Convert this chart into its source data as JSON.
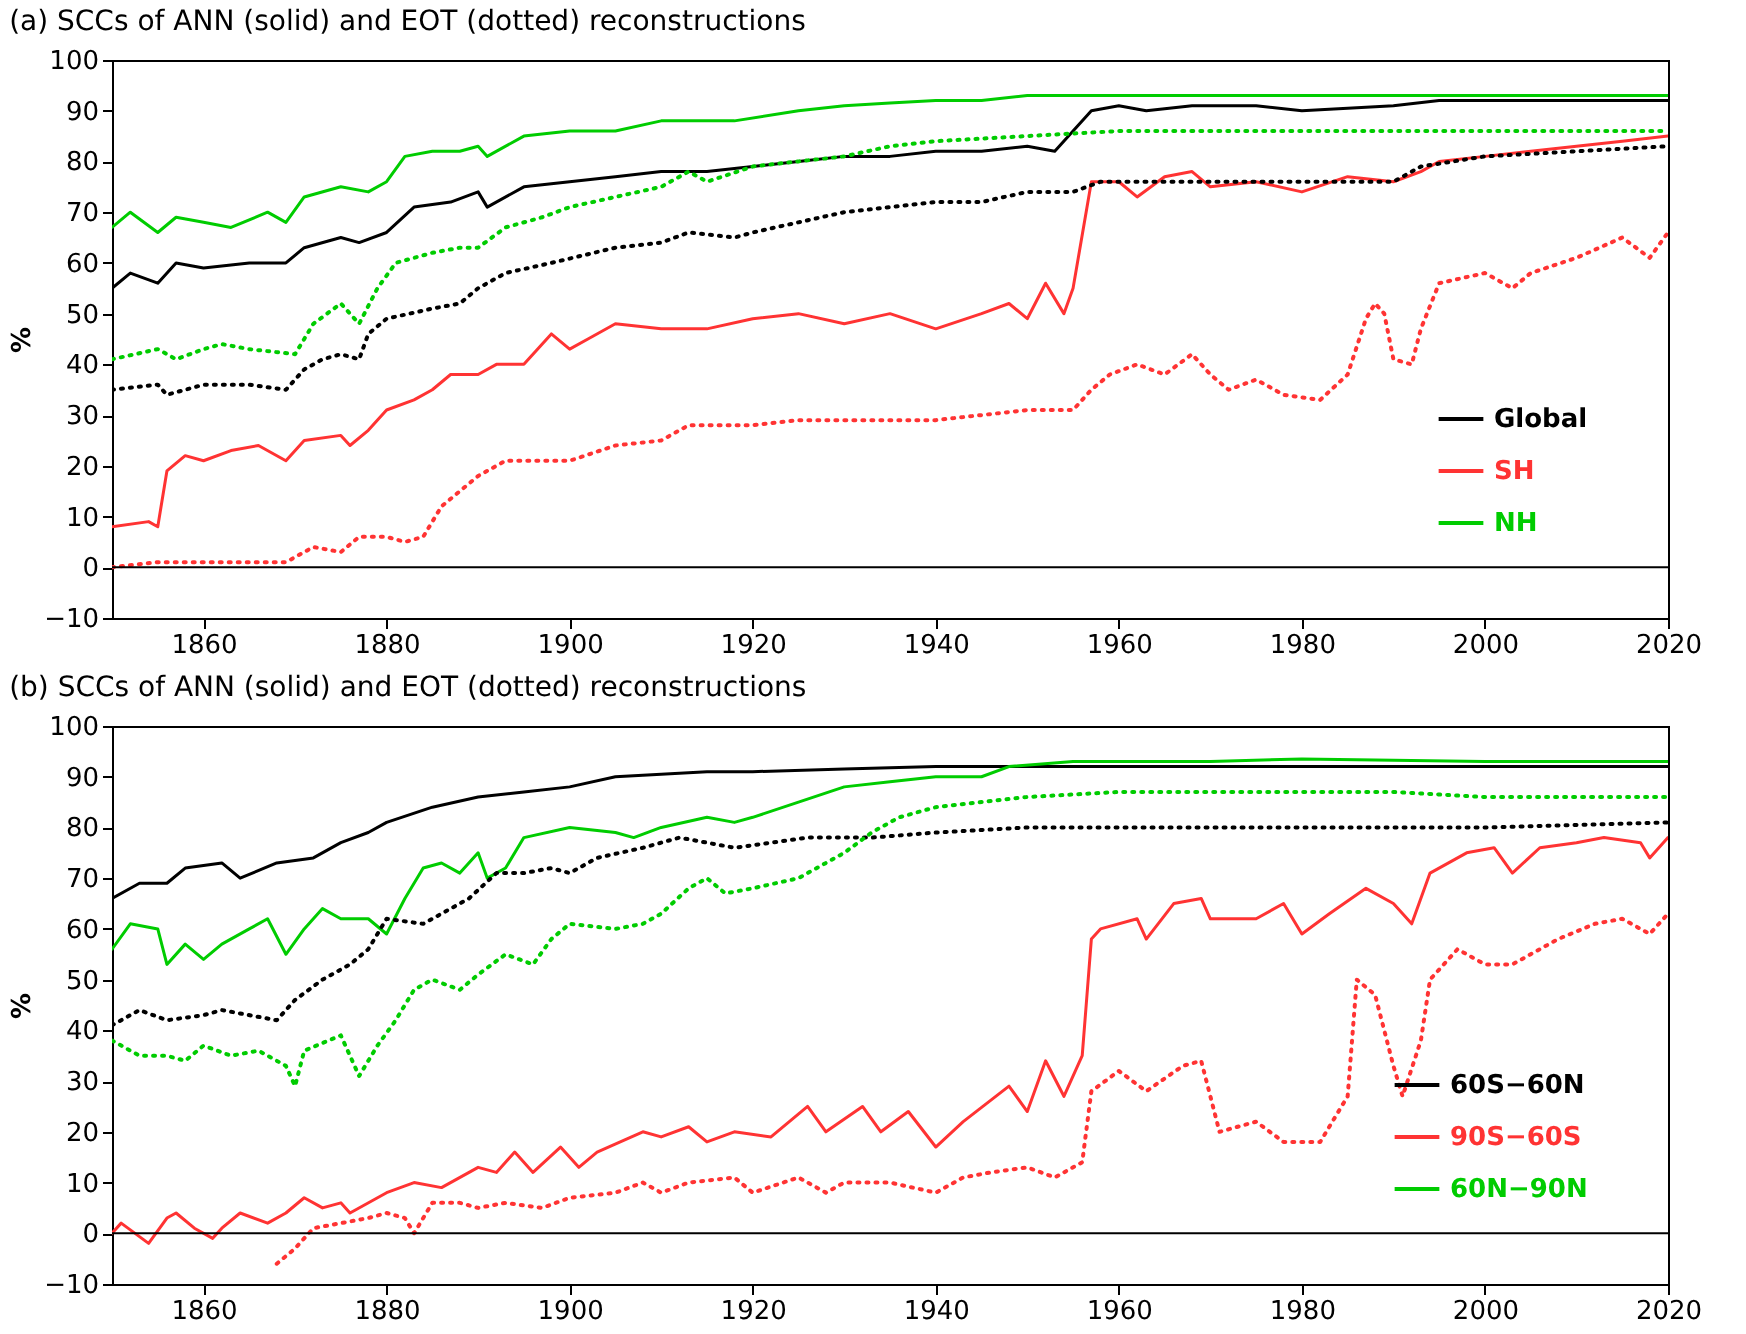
{
  "chart_data": [
    {
      "type": "line",
      "title": "(a) SCCs of ANN (solid) and EOT (dotted) reconstructions",
      "ylabel": "%",
      "xlim": [
        1850,
        2020
      ],
      "ylim": [
        -10,
        100
      ],
      "xticks": [
        1860,
        1880,
        1900,
        1920,
        1940,
        1960,
        1980,
        2000,
        2020
      ],
      "yticks": [
        -10,
        0,
        10,
        20,
        30,
        40,
        50,
        60,
        70,
        80,
        90,
        100
      ],
      "legend": "bottom right",
      "ref_lines": [
        {
          "axis": "y",
          "value": 0,
          "color": "#000000"
        }
      ],
      "series": [
        {
          "name": "Global",
          "color": "#000000",
          "line_style": "solid",
          "x": [
            1850,
            1852,
            1855,
            1857,
            1860,
            1865,
            1869,
            1871,
            1875,
            1877,
            1880,
            1883,
            1887,
            1890,
            1891,
            1895,
            1900,
            1905,
            1910,
            1915,
            1920,
            1925,
            1930,
            1935,
            1940,
            1945,
            1950,
            1953,
            1955,
            1957,
            1960,
            1963,
            1968,
            1975,
            1980,
            1990,
            1995,
            2000,
            2005,
            2010,
            2020
          ],
          "values": [
            55,
            58,
            56,
            60,
            59,
            60,
            60,
            63,
            65,
            64,
            66,
            71,
            72,
            74,
            71,
            75,
            76,
            77,
            78,
            78,
            79,
            80,
            81,
            81,
            82,
            82,
            83,
            82,
            86,
            90,
            91,
            90,
            91,
            91,
            90,
            91,
            92,
            92,
            92,
            92,
            92
          ]
        },
        {
          "name": "SH",
          "color": "#ff3333",
          "line_style": "solid",
          "x": [
            1850,
            1854,
            1855,
            1856,
            1858,
            1860,
            1863,
            1866,
            1869,
            1871,
            1875,
            1876,
            1878,
            1880,
            1883,
            1885,
            1887,
            1890,
            1892,
            1895,
            1898,
            1900,
            1902,
            1905,
            1910,
            1915,
            1920,
            1925,
            1930,
            1935,
            1940,
            1945,
            1948,
            1950,
            1952,
            1954,
            1955,
            1957,
            1960,
            1962,
            1965,
            1968,
            1970,
            1975,
            1980,
            1985,
            1990,
            1993,
            1995,
            2000,
            2005,
            2010,
            2015,
            2020
          ],
          "values": [
            8,
            9,
            8,
            19,
            22,
            21,
            23,
            24,
            21,
            25,
            26,
            24,
            27,
            31,
            33,
            35,
            38,
            38,
            40,
            40,
            46,
            43,
            45,
            48,
            47,
            47,
            49,
            50,
            48,
            50,
            47,
            50,
            52,
            49,
            56,
            50,
            55,
            76,
            76,
            73,
            77,
            78,
            75,
            76,
            74,
            77,
            76,
            78,
            80,
            81,
            82,
            83,
            84,
            85
          ]
        },
        {
          "name": "NH",
          "color": "#00cc00",
          "line_style": "solid",
          "x": [
            1850,
            1852,
            1855,
            1857,
            1860,
            1863,
            1867,
            1869,
            1871,
            1875,
            1878,
            1880,
            1882,
            1885,
            1888,
            1890,
            1891,
            1895,
            1900,
            1905,
            1910,
            1918,
            1925,
            1930,
            1935,
            1940,
            1945,
            1950,
            1960,
            1980,
            2000,
            2020
          ],
          "values": [
            67,
            70,
            66,
            69,
            68,
            67,
            70,
            68,
            73,
            75,
            74,
            76,
            81,
            82,
            82,
            83,
            81,
            85,
            86,
            86,
            88,
            88,
            90,
            91,
            91.5,
            92,
            92,
            93,
            93,
            93,
            93,
            93
          ]
        },
        {
          "color": "#000000",
          "line_style": "dotted",
          "x": [
            1850,
            1855,
            1856,
            1860,
            1865,
            1869,
            1871,
            1873,
            1875,
            1877,
            1878,
            1880,
            1885,
            1888,
            1890,
            1893,
            1898,
            1905,
            1910,
            1913,
            1918,
            1920,
            1925,
            1930,
            1935,
            1940,
            1945,
            1950,
            1955,
            1958,
            1965,
            1970,
            1980,
            1990,
            1993,
            2000,
            2010,
            2020
          ],
          "values": [
            35,
            36,
            34,
            36,
            36,
            35,
            39,
            41,
            42,
            41,
            46,
            49,
            51,
            52,
            55,
            58,
            60,
            63,
            64,
            66,
            65,
            66,
            68,
            70,
            71,
            72,
            72,
            74,
            74,
            76,
            76,
            76,
            76,
            76,
            79,
            81,
            82,
            83
          ]
        },
        {
          "color": "#ff3333",
          "line_style": "dotted",
          "x": [
            1850,
            1855,
            1860,
            1865,
            1869,
            1872,
            1875,
            1877,
            1880,
            1882,
            1884,
            1886,
            1888,
            1890,
            1893,
            1897,
            1900,
            1905,
            1910,
            1913,
            1920,
            1925,
            1930,
            1935,
            1940,
            1945,
            1950,
            1955,
            1957,
            1959,
            1962,
            1965,
            1968,
            1970,
            1972,
            1975,
            1978,
            1982,
            1985,
            1987,
            1988,
            1989,
            1990,
            1992,
            1993,
            1995,
            2000,
            2003,
            2005,
            2010,
            2015,
            2018,
            2020
          ],
          "values": [
            0,
            1,
            1,
            1,
            1,
            4,
            3,
            6,
            6,
            5,
            6,
            12,
            15,
            18,
            21,
            21,
            21,
            24,
            25,
            28,
            28,
            29,
            29,
            29,
            29,
            30,
            31,
            31,
            35,
            38,
            40,
            38,
            42,
            38,
            35,
            37,
            34,
            33,
            38,
            49,
            52,
            50,
            41,
            40,
            47,
            56,
            58,
            55,
            58,
            61,
            65,
            61,
            66
          ]
        },
        {
          "color": "#00cc00",
          "line_style": "dotted",
          "x": [
            1850,
            1855,
            1857,
            1860,
            1862,
            1865,
            1870,
            1872,
            1875,
            1877,
            1879,
            1881,
            1885,
            1888,
            1890,
            1893,
            1897,
            1900,
            1905,
            1910,
            1913,
            1915,
            1920,
            1925,
            1930,
            1935,
            1940,
            1950,
            1960,
            1970,
            1990,
            2000,
            2020
          ],
          "values": [
            41,
            43,
            41,
            43,
            44,
            43,
            42,
            48,
            52,
            48,
            55,
            60,
            62,
            63,
            63,
            67,
            69,
            71,
            73,
            75,
            78,
            76,
            79,
            80,
            81,
            83,
            84,
            85,
            86,
            86,
            86,
            86,
            86
          ]
        }
      ]
    },
    {
      "type": "line",
      "title": "(b) SCCs of ANN (solid) and EOT (dotted) reconstructions",
      "ylabel": "%",
      "xlim": [
        1850,
        2020
      ],
      "ylim": [
        -10,
        100
      ],
      "xticks": [
        1860,
        1880,
        1900,
        1920,
        1940,
        1960,
        1980,
        2000,
        2020
      ],
      "yticks": [
        -10,
        0,
        10,
        20,
        30,
        40,
        50,
        60,
        70,
        80,
        90,
        100
      ],
      "legend": "bottom right",
      "ref_lines": [
        {
          "axis": "y",
          "value": 0,
          "color": "#000000"
        }
      ],
      "series": [
        {
          "name": "60S−60N",
          "color": "#000000",
          "line_style": "solid",
          "x": [
            1850,
            1853,
            1856,
            1858,
            1862,
            1864,
            1868,
            1872,
            1875,
            1878,
            1880,
            1885,
            1890,
            1895,
            1900,
            1905,
            1910,
            1915,
            1920,
            1930,
            1940,
            1950,
            1960,
            2000,
            2010,
            2020
          ],
          "values": [
            66,
            69,
            69,
            72,
            73,
            70,
            73,
            74,
            77,
            79,
            81,
            84,
            86,
            87,
            88,
            90,
            90.5,
            91,
            91,
            91.5,
            92,
            92,
            92,
            92,
            92,
            92
          ]
        },
        {
          "name": "90S−60S",
          "color": "#ff3333",
          "line_style": "solid",
          "x": [
            1850,
            1851,
            1854,
            1856,
            1857,
            1859,
            1861,
            1862,
            1864,
            1867,
            1869,
            1871,
            1873,
            1875,
            1876,
            1880,
            1883,
            1886,
            1890,
            1892,
            1894,
            1896,
            1899,
            1901,
            1903,
            1908,
            1910,
            1913,
            1915,
            1918,
            1922,
            1926,
            1928,
            1932,
            1934,
            1937,
            1940,
            1943,
            1948,
            1950,
            1952,
            1954,
            1956,
            1957,
            1958,
            1962,
            1963,
            1966,
            1969,
            1970,
            1975,
            1978,
            1980,
            1983,
            1987,
            1990,
            1992,
            1994,
            1998,
            2001,
            2003,
            2006,
            2010,
            2013,
            2017,
            2018,
            2020
          ],
          "values": [
            0,
            2,
            -2,
            3,
            4,
            1,
            -1,
            1,
            4,
            2,
            4,
            7,
            5,
            6,
            4,
            8,
            10,
            9,
            13,
            12,
            16,
            12,
            17,
            13,
            16,
            20,
            19,
            21,
            18,
            20,
            19,
            25,
            20,
            25,
            20,
            24,
            17,
            22,
            29,
            24,
            34,
            27,
            35,
            58,
            60,
            62,
            58,
            65,
            66,
            62,
            62,
            65,
            59,
            63,
            68,
            65,
            61,
            71,
            75,
            76,
            71,
            76,
            77,
            78,
            77,
            74,
            78
          ]
        },
        {
          "name": "60N−90N",
          "color": "#00cc00",
          "line_style": "solid",
          "x": [
            1850,
            1852,
            1855,
            1856,
            1858,
            1860,
            1862,
            1865,
            1867,
            1869,
            1871,
            1873,
            1875,
            1878,
            1880,
            1882,
            1884,
            1886,
            1888,
            1890,
            1891,
            1893,
            1895,
            1900,
            1905,
            1907,
            1910,
            1915,
            1918,
            1920,
            1925,
            1930,
            1935,
            1940,
            1945,
            1948,
            1955,
            1970,
            1980,
            2000,
            2020
          ],
          "values": [
            56,
            61,
            60,
            53,
            57,
            54,
            57,
            60,
            62,
            55,
            60,
            64,
            62,
            62,
            59,
            66,
            72,
            73,
            71,
            75,
            70,
            72,
            78,
            80,
            79,
            78,
            80,
            82,
            81,
            82,
            85,
            88,
            89,
            90,
            90,
            92,
            93,
            93,
            93.5,
            93,
            93
          ]
        },
        {
          "color": "#000000",
          "line_style": "dotted",
          "x": [
            1850,
            1853,
            1856,
            1860,
            1862,
            1868,
            1870,
            1873,
            1876,
            1878,
            1880,
            1884,
            1886,
            1889,
            1892,
            1895,
            1898,
            1900,
            1903,
            1908,
            1912,
            1918,
            1922,
            1926,
            1933,
            1940,
            1950,
            1960,
            1980,
            2000,
            2020
          ],
          "values": [
            41,
            44,
            42,
            43,
            44,
            42,
            46,
            50,
            53,
            56,
            62,
            61,
            63,
            66,
            71,
            71,
            72,
            71,
            74,
            76,
            78,
            76,
            77,
            78,
            78,
            79,
            80,
            80,
            80,
            80,
            81
          ]
        },
        {
          "color": "#ff3333",
          "line_style": "dotted",
          "x": [
            1868,
            1870,
            1872,
            1875,
            1878,
            1880,
            1882,
            1883,
            1885,
            1888,
            1890,
            1893,
            1897,
            1900,
            1905,
            1908,
            1910,
            1913,
            1918,
            1920,
            1925,
            1928,
            1930,
            1935,
            1940,
            1943,
            1946,
            1950,
            1953,
            1956,
            1957,
            1960,
            1963,
            1967,
            1969,
            1971,
            1975,
            1978,
            1982,
            1985,
            1986,
            1988,
            1990,
            1991,
            1993,
            1994,
            1997,
            2000,
            2003,
            2005,
            2008,
            2012,
            2015,
            2018,
            2020
          ],
          "values": [
            -6,
            -3,
            1,
            2,
            3,
            4,
            3,
            0,
            6,
            6,
            5,
            6,
            5,
            7,
            8,
            10,
            8,
            10,
            11,
            8,
            11,
            8,
            10,
            10,
            8,
            11,
            12,
            13,
            11,
            14,
            28,
            32,
            28,
            33,
            34,
            20,
            22,
            18,
            18,
            27,
            50,
            47,
            33,
            27,
            38,
            50,
            56,
            53,
            53,
            55,
            58,
            61,
            62,
            59,
            63
          ]
        },
        {
          "color": "#00cc00",
          "line_style": "dotted",
          "x": [
            1850,
            1853,
            1856,
            1858,
            1860,
            1863,
            1866,
            1869,
            1870,
            1871,
            1875,
            1877,
            1879,
            1881,
            1883,
            1885,
            1888,
            1890,
            1893,
            1896,
            1898,
            1900,
            1905,
            1908,
            1910,
            1913,
            1915,
            1917,
            1920,
            1925,
            1930,
            1933,
            1936,
            1940,
            1945,
            1950,
            1960,
            1970,
            1980,
            1990,
            2000,
            2010,
            2020
          ],
          "values": [
            38,
            35,
            35,
            34,
            37,
            35,
            36,
            33,
            29,
            36,
            39,
            31,
            37,
            42,
            48,
            50,
            48,
            51,
            55,
            53,
            58,
            61,
            60,
            61,
            63,
            68,
            70,
            67,
            68,
            70,
            75,
            79,
            82,
            84,
            85,
            86,
            87,
            87,
            87,
            87,
            86,
            86,
            86
          ]
        }
      ]
    }
  ]
}
